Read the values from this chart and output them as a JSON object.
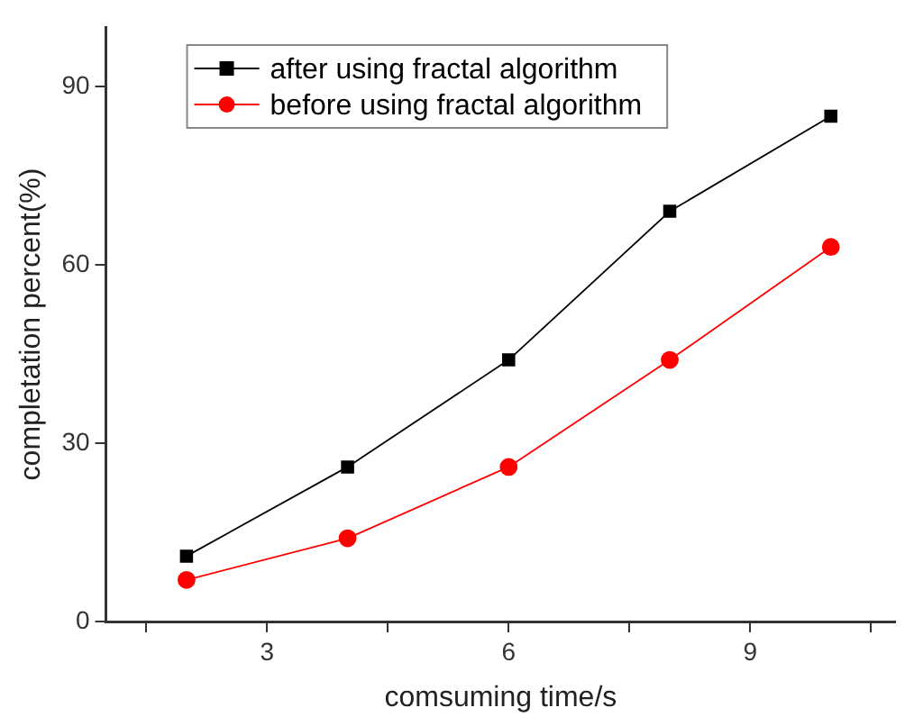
{
  "chart_data": {
    "type": "line",
    "xlabel": "comsuming time/s",
    "ylabel": "completation percent(%)",
    "x": [
      2,
      4,
      6,
      8,
      10
    ],
    "series": [
      {
        "name": "after using fractal algorithm",
        "color": "#000000",
        "marker": "square",
        "values": [
          11,
          26,
          44,
          69,
          85
        ]
      },
      {
        "name": "before using fractal algorithm",
        "color": "#ff0000",
        "marker": "circle",
        "values": [
          7,
          14,
          26,
          44,
          63
        ]
      }
    ],
    "xlim": [
      1,
      10.8
    ],
    "xticks": [
      {
        "value": 1.5,
        "label": null
      },
      3,
      {
        "value": 4.5,
        "label": null
      },
      6,
      {
        "value": 7.5,
        "label": null
      },
      9,
      {
        "value": 10.5,
        "label": null
      }
    ],
    "ylim": [
      0,
      100
    ],
    "yticks": [
      0,
      30,
      60,
      90
    ],
    "grid": false,
    "legend": "top left"
  }
}
